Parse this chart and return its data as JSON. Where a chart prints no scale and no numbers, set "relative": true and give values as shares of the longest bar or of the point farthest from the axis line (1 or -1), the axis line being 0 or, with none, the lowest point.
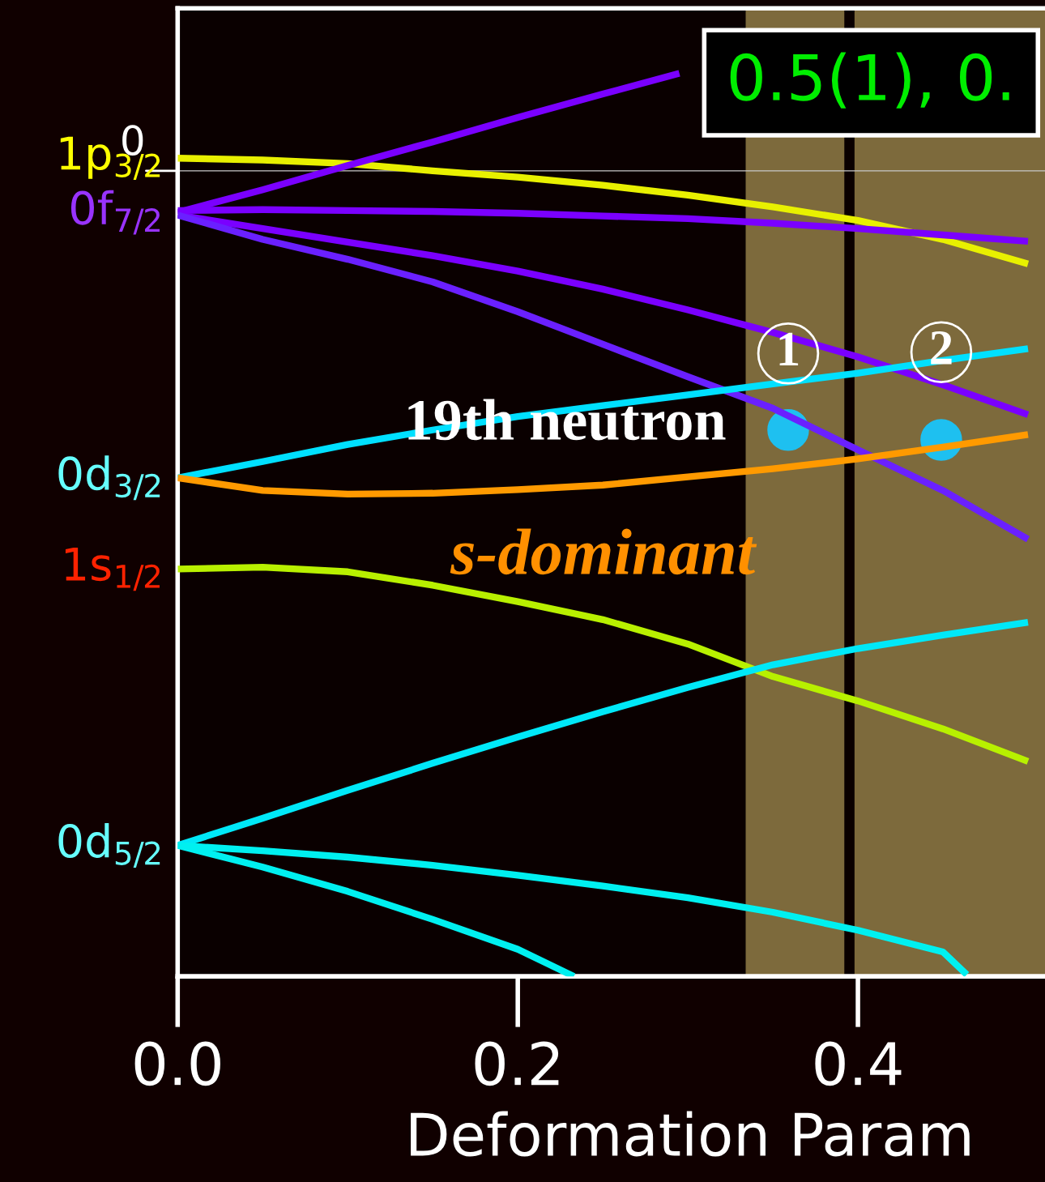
{
  "chart_data": {
    "type": "line",
    "relative": true,
    "xlabel": "Deformation Param",
    "xlim": [
      0,
      0.51
    ],
    "xticks": [
      {
        "value": 0,
        "label": "0.0"
      },
      {
        "value": 0.2,
        "label": "0.2"
      },
      {
        "value": 0.4,
        "label": "0.4"
      }
    ],
    "x": [
      0,
      0.05,
      0.1,
      0.15,
      0.2,
      0.25,
      0.3,
      0.35,
      0.4,
      0.45,
      0.5
    ],
    "series": [
      {
        "color": "#e8f000",
        "values": [
          0.906,
          0.904,
          0.9,
          0.892,
          0.885,
          0.876,
          0.865,
          0.852,
          0.837,
          0.816,
          0.789
        ]
      },
      {
        "color": "#7a00ff",
        "x": [
          0,
          0.05,
          0.1,
          0.15,
          0.2,
          0.25,
          0.295
        ],
        "values": [
          0.846,
          0.871,
          0.898,
          0.924,
          0.951,
          0.977,
          1.0
        ]
      },
      {
        "color": "#7a00ff",
        "values": [
          0.848,
          0.849,
          0.848,
          0.847,
          0.845,
          0.842,
          0.839,
          0.834,
          0.828,
          0.821,
          0.814
        ]
      },
      {
        "color": "#7a00ff",
        "values": [
          0.843,
          0.828,
          0.813,
          0.798,
          0.781,
          0.761,
          0.738,
          0.713,
          0.686,
          0.655,
          0.622
        ]
      },
      {
        "color": "#6a20ff",
        "values": [
          0.843,
          0.816,
          0.794,
          0.769,
          0.736,
          0.7,
          0.664,
          0.629,
          0.583,
          0.538,
          0.484
        ]
      },
      {
        "color": "#00e0ff",
        "values": [
          0.552,
          0.57,
          0.589,
          0.605,
          0.62,
          0.632,
          0.644,
          0.656,
          0.668,
          0.682,
          0.695
        ]
      },
      {
        "color": "#ff9a00",
        "values": [
          0.552,
          0.538,
          0.534,
          0.535,
          0.539,
          0.544,
          0.553,
          0.562,
          0.573,
          0.586,
          0.6
        ]
      },
      {
        "color": "#b8f000",
        "values": [
          0.451,
          0.453,
          0.448,
          0.433,
          0.415,
          0.395,
          0.368,
          0.332,
          0.305,
          0.274,
          0.238
        ]
      },
      {
        "color": "#00e8f8",
        "values": [
          0.145,
          0.175,
          0.206,
          0.236,
          0.265,
          0.293,
          0.32,
          0.345,
          0.363,
          0.378,
          0.392
        ]
      },
      {
        "color": "#00f0f0",
        "x": [
          0,
          0.05,
          0.1,
          0.15,
          0.2,
          0.25,
          0.3,
          0.35,
          0.4,
          0.45,
          0.464
        ],
        "values": [
          0.145,
          0.139,
          0.132,
          0.123,
          0.112,
          0.1,
          0.087,
          0.071,
          0.051,
          0.027,
          0.002
        ]
      },
      {
        "color": "#00f0f0",
        "x": [
          0,
          0.05,
          0.1,
          0.15,
          0.2,
          0.233
        ],
        "values": [
          0.145,
          0.121,
          0.094,
          0.063,
          0.03,
          0.0
        ]
      },
      {
        "type": "scatter",
        "marker": "circle",
        "color": "#1ec0f0",
        "x": [
          0.359,
          0.449
        ],
        "values": [
          0.605,
          0.594
        ]
      }
    ],
    "ref_lines": [
      {
        "axis": "y",
        "value": 0.892,
        "color": "#c8c8c8"
      }
    ],
    "bands": [
      {
        "axis": "x",
        "from": 0.334,
        "to": 0.392,
        "color": "#7d6a3c"
      },
      {
        "axis": "x",
        "from": 0.398,
        "to": 0.51,
        "color": "#7d6a3c"
      }
    ],
    "annotations": [
      {
        "text": "1p$_{3/2}$",
        "x": 0,
        "y": 0.906
      },
      {
        "text": "0f$_{7/2}$",
        "x": 0,
        "y": 0.846
      },
      {
        "text": "0d$_{3/2}$",
        "x": 0,
        "y": 0.552
      },
      {
        "text": "1s$_{1/2}$",
        "x": 0,
        "y": 0.451
      },
      {
        "text": "0d$_{5/2}$",
        "x": 0,
        "y": 0.145
      },
      {
        "text": "1",
        "x": 0.359,
        "y": 0.605
      },
      {
        "text": "2",
        "x": 0.449,
        "y": 0.594
      },
      {
        "text": "19th neutron",
        "x": 0.359,
        "y": 0.605
      },
      {
        "text": "s-dominant",
        "x": 0.25,
        "y": 0.544
      },
      "0.5(1), 0.",
      {
        "text": "0",
        "x": 0,
        "y": 0.892
      }
    ],
    "legend": false,
    "grid": false,
    "marker": "none",
    "line_style": "solid"
  }
}
